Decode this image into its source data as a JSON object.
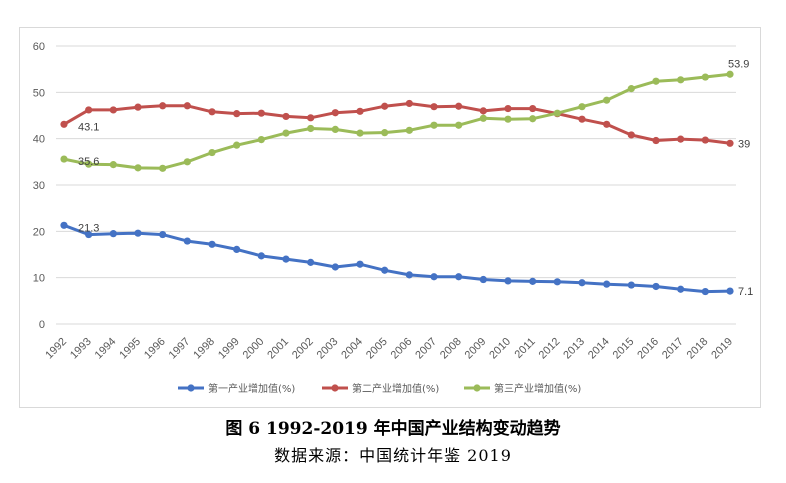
{
  "caption": {
    "title": "图 6 1992-2019 年中国产业结构变动趋势",
    "source": "数据来源：中国统计年鉴 2019"
  },
  "chart_data": {
    "type": "line",
    "x": [
      "1992",
      "1993",
      "1994",
      "1995",
      "1996",
      "1997",
      "1998",
      "1999",
      "2000",
      "2001",
      "2002",
      "2003",
      "2004",
      "2005",
      "2006",
      "2007",
      "2008",
      "2009",
      "2010",
      "2011",
      "2012",
      "2013",
      "2014",
      "2015",
      "2016",
      "2017",
      "2018",
      "2019"
    ],
    "ylim": [
      0,
      60
    ],
    "yticks": [
      0,
      10,
      20,
      30,
      40,
      50,
      60
    ],
    "grid": true,
    "legend": "bottom",
    "series": [
      {
        "name": "第一产业增加值(%)",
        "color": "#4472C4",
        "values": [
          21.3,
          19.3,
          19.5,
          19.6,
          19.3,
          17.9,
          17.2,
          16.1,
          14.7,
          14.0,
          13.3,
          12.3,
          12.9,
          11.6,
          10.6,
          10.2,
          10.2,
          9.6,
          9.3,
          9.2,
          9.1,
          8.9,
          8.6,
          8.4,
          8.1,
          7.5,
          7.0,
          7.1
        ],
        "labels": {
          "0": "21.3",
          "27": "7.1"
        }
      },
      {
        "name": "第二产业增加值(%)",
        "color": "#C0504D",
        "values": [
          43.1,
          46.2,
          46.2,
          46.8,
          47.1,
          47.1,
          45.8,
          45.4,
          45.5,
          44.8,
          44.5,
          45.6,
          45.9,
          47.0,
          47.6,
          46.9,
          47.0,
          46.0,
          46.5,
          46.5,
          45.4,
          44.2,
          43.1,
          40.8,
          39.6,
          39.9,
          39.7,
          39.0
        ],
        "labels": {
          "0": "43.1",
          "27": "39"
        }
      },
      {
        "name": "第三产业增加值(%)",
        "color": "#9BBB59",
        "values": [
          35.6,
          34.5,
          34.4,
          33.7,
          33.6,
          35.0,
          37.0,
          38.6,
          39.8,
          41.2,
          42.2,
          42.0,
          41.2,
          41.3,
          41.8,
          42.9,
          42.9,
          44.4,
          44.2,
          44.3,
          45.5,
          46.9,
          48.3,
          50.8,
          52.4,
          52.7,
          53.3,
          53.9
        ],
        "labels": {
          "0": "35.6",
          "27": "53.9"
        }
      }
    ]
  }
}
